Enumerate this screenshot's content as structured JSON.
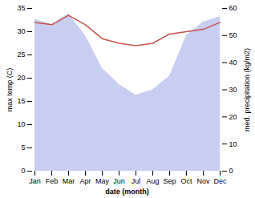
{
  "chart_data": {
    "type": "line",
    "xlabel": "date (month)",
    "ylabel": "max temp (C)",
    "y2label": "med. precipitation (kg/m2)",
    "categories": [
      "Jan",
      "Feb",
      "Mar",
      "Apr",
      "May",
      "Jun",
      "Jul",
      "Aug",
      "Sep",
      "Oct",
      "Nov",
      "Dec"
    ],
    "series": [
      {
        "type": "area",
        "axis": "y2",
        "color": "#c8cef2",
        "values": [
          56.0,
          54.0,
          58.0,
          50.0,
          38.0,
          32.0,
          28.0,
          30.0,
          35.0,
          50.0,
          55.0,
          57.0
        ]
      },
      {
        "type": "line",
        "color": "#c8524a",
        "values": [
          32.0,
          31.5,
          33.5,
          31.5,
          28.5,
          27.5,
          27.0,
          27.5,
          29.5,
          30.0,
          30.5,
          32.0
        ]
      }
    ],
    "ylim": [
      0,
      35
    ],
    "yticks": [
      0,
      5,
      10,
      15,
      20,
      25,
      30,
      35
    ],
    "y2lim": [
      0,
      60
    ],
    "y2ticks": [
      0,
      10,
      20,
      30,
      40,
      50,
      60
    ],
    "grid": false
  }
}
